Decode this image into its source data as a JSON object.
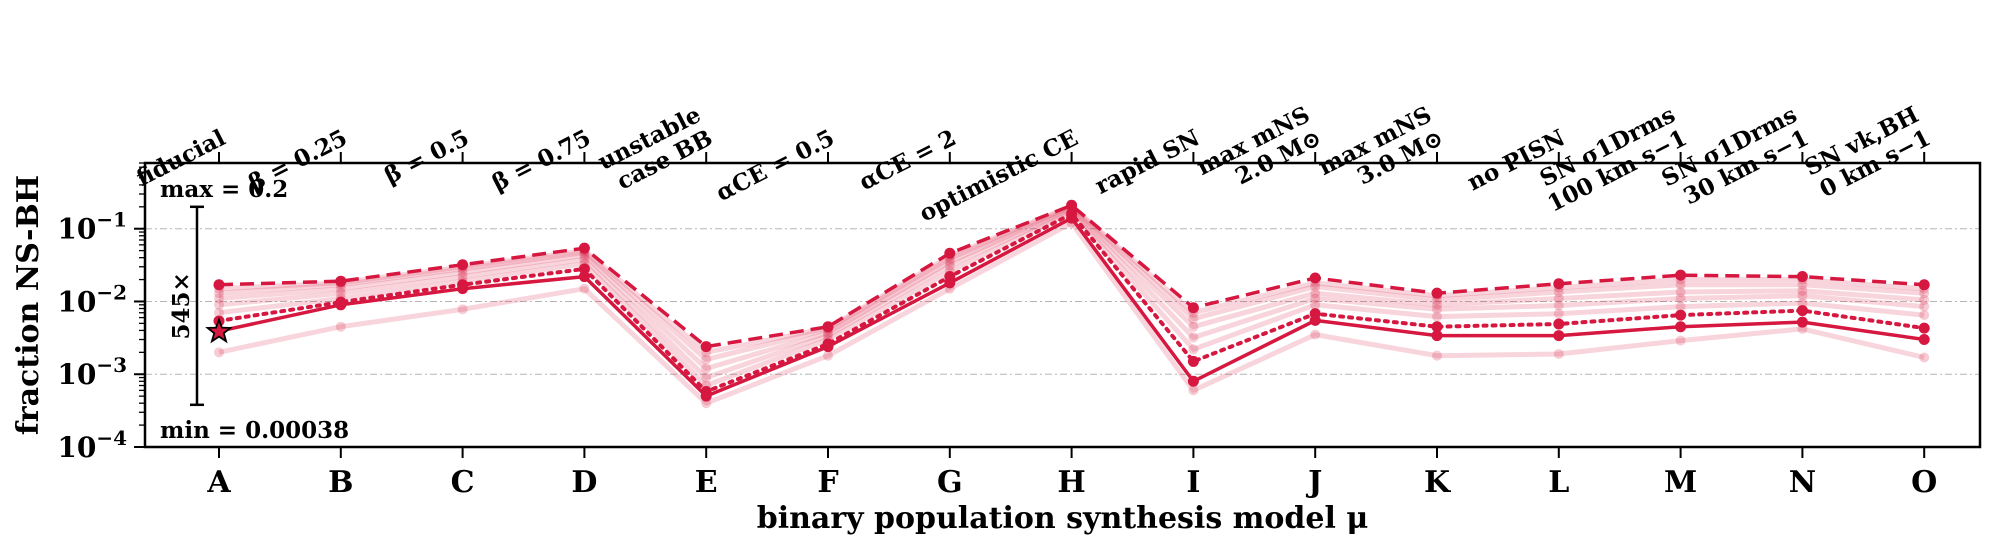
{
  "chart_data": {
    "type": "line",
    "xlabel": "binary population synthesis model μ",
    "ylabel": "fraction NS-BH",
    "yscale": "log",
    "ylim": [
      0.0001,
      0.8
    ],
    "categories": [
      "A",
      "B",
      "C",
      "D",
      "E",
      "F",
      "G",
      "H",
      "I",
      "J",
      "K",
      "L",
      "M",
      "N",
      "O"
    ],
    "top_labels": [
      [
        "fiducial"
      ],
      [
        "β = 0.25"
      ],
      [
        "β = 0.5"
      ],
      [
        "β = 0.75"
      ],
      [
        "unstable",
        "case BB"
      ],
      [
        "αCE = 0.5"
      ],
      [
        "αCE = 2"
      ],
      [
        "optimistic CE"
      ],
      [
        "rapid SN"
      ],
      [
        "max mNS",
        "2.0 M⊙"
      ],
      [
        "max mNS",
        "3.0 M⊙"
      ],
      [
        "no PISN"
      ],
      [
        "SN σ1Drms",
        "100 km s−1"
      ],
      [
        "SN σ1Drms",
        "30 km s−1"
      ],
      [
        "SN vk,BH",
        "0 km s−1"
      ]
    ],
    "y_ticks": [
      {
        "value": 0.0001,
        "label": "10−4"
      },
      {
        "value": 0.001,
        "label": "10−3"
      },
      {
        "value": 0.01,
        "label": "10−2"
      },
      {
        "value": 0.1,
        "label": "10−1"
      }
    ],
    "grid": "horizontal dash-dot at major ticks",
    "color": "#d6173f",
    "series": [
      {
        "style": "dashed",
        "values": [
          0.017,
          0.019,
          0.032,
          0.054,
          0.0024,
          0.0045,
          0.046,
          0.21,
          0.0082,
          0.021,
          0.013,
          0.0175,
          0.023,
          0.022,
          0.017
        ]
      },
      {
        "style": "solid",
        "values": [
          0.0039,
          0.009,
          0.015,
          0.022,
          0.0005,
          0.0024,
          0.018,
          0.14,
          0.0008,
          0.0055,
          0.0034,
          0.0034,
          0.0045,
          0.0052,
          0.003
        ]
      },
      {
        "style": "dotted",
        "values": [
          0.0054,
          0.0098,
          0.017,
          0.028,
          0.00058,
          0.0026,
          0.022,
          0.16,
          0.0015,
          0.0068,
          0.0045,
          0.0049,
          0.0065,
          0.0075,
          0.0043
        ]
      },
      {
        "style": "faint",
        "values": [
          0.002,
          0.0045,
          0.0078,
          0.015,
          0.0004,
          0.0018,
          0.015,
          0.12,
          0.0006,
          0.0035,
          0.0018,
          0.0019,
          0.0029,
          0.0042,
          0.0017
        ]
      },
      {
        "style": "faint",
        "values": [
          0.007,
          0.011,
          0.019,
          0.033,
          0.0007,
          0.003,
          0.026,
          0.17,
          0.0022,
          0.009,
          0.0062,
          0.0068,
          0.0085,
          0.0095,
          0.0065
        ]
      },
      {
        "style": "faint",
        "values": [
          0.009,
          0.013,
          0.022,
          0.038,
          0.0009,
          0.0034,
          0.031,
          0.18,
          0.0032,
          0.011,
          0.0078,
          0.0088,
          0.011,
          0.012,
          0.0085
        ]
      },
      {
        "style": "faint",
        "values": [
          0.011,
          0.015,
          0.025,
          0.043,
          0.0012,
          0.0037,
          0.035,
          0.19,
          0.0045,
          0.013,
          0.009,
          0.011,
          0.0135,
          0.014,
          0.0105
        ]
      },
      {
        "style": "faint",
        "values": [
          0.013,
          0.017,
          0.028,
          0.047,
          0.0016,
          0.0041,
          0.039,
          0.2,
          0.0058,
          0.016,
          0.0105,
          0.0135,
          0.017,
          0.017,
          0.013
        ]
      },
      {
        "style": "faint",
        "values": [
          0.015,
          0.018,
          0.03,
          0.05,
          0.002,
          0.0043,
          0.042,
          0.205,
          0.007,
          0.018,
          0.012,
          0.0155,
          0.02,
          0.02,
          0.015
        ]
      }
    ],
    "fiducial_marker": {
      "category": "A",
      "value": 0.00385,
      "symbol": "star"
    },
    "range_annotation": {
      "max_label": "max = 0.2",
      "min_label": "min = 0.00038",
      "ratio_label": "545×",
      "max": 0.2,
      "min": 0.00038
    }
  }
}
